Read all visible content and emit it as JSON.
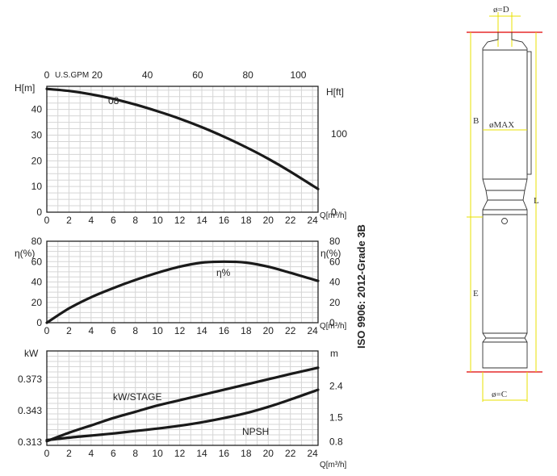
{
  "chart_data": [
    {
      "type": "line",
      "name": "head",
      "x_label": "Q[m³/h]",
      "x_ticks": [
        "0",
        "2",
        "4",
        "6",
        "8",
        "10",
        "12",
        "14",
        "16",
        "18",
        "20",
        "22",
        "24"
      ],
      "xlim": [
        0,
        24.5
      ],
      "y_label": "H[m]",
      "y_ticks": [
        "0",
        "10",
        "20",
        "30",
        "40"
      ],
      "ylim": [
        0,
        49
      ],
      "top_axis_label": "U.S.GPM",
      "top_ticks": [
        "0",
        "20",
        "40",
        "60",
        "80",
        "100"
      ],
      "right_label": "H[ft]",
      "right_ticks": [
        "0",
        "100"
      ],
      "grid": true,
      "series": [
        {
          "name": "08",
          "x": [
            0,
            2,
            4,
            6,
            8,
            10,
            12,
            14,
            16,
            18,
            20,
            22,
            24.5
          ],
          "y": [
            48,
            47.2,
            45.9,
            44.1,
            41.9,
            39.3,
            36.4,
            33.1,
            29.4,
            25.3,
            20.8,
            15.8,
            9
          ]
        }
      ]
    },
    {
      "type": "line",
      "name": "efficiency",
      "x_label": "Q[m³/h]",
      "x_ticks": [
        "0",
        "2",
        "4",
        "6",
        "8",
        "10",
        "12",
        "14",
        "16",
        "18",
        "20",
        "22",
        "24"
      ],
      "xlim": [
        0,
        24.5
      ],
      "y_label": "η(%)",
      "y_ticks": [
        "0",
        "20",
        "40",
        "60",
        "80"
      ],
      "ylim": [
        0,
        80
      ],
      "right_label": "η(%)",
      "right_ticks": [
        "0",
        "20",
        "40",
        "60",
        "80"
      ],
      "grid": true,
      "series": [
        {
          "name": "η%",
          "x": [
            0,
            2,
            4,
            6,
            8,
            10,
            12,
            14,
            16,
            18,
            20,
            22,
            24.5
          ],
          "y": [
            0,
            14,
            25,
            34,
            42,
            49,
            55,
            59,
            60,
            59,
            55,
            49,
            41
          ]
        }
      ]
    },
    {
      "type": "line",
      "name": "power-npsh",
      "x_label": "Q[m³/h]",
      "x_ticks": [
        "0",
        "2",
        "4",
        "6",
        "8",
        "10",
        "12",
        "14",
        "16",
        "18",
        "20",
        "22",
        "24"
      ],
      "xlim": [
        0,
        24.5
      ],
      "y_label": "kW",
      "y_ticks": [
        "0.313",
        "0.343",
        "0.373"
      ],
      "ylim": [
        0.31,
        0.4
      ],
      "right_label": "m",
      "right_ticks": [
        "0.8",
        "1.5",
        "2.4"
      ],
      "right_lim": [
        0.7,
        3.4
      ],
      "grid": true,
      "series": [
        {
          "name": "kW/STAGE",
          "axis": "left",
          "x": [
            0,
            2,
            4,
            6,
            8,
            10,
            12,
            14,
            16,
            18,
            20,
            22,
            24.5
          ],
          "y": [
            0.314,
            0.322,
            0.329,
            0.336,
            0.342,
            0.348,
            0.353,
            0.358,
            0.363,
            0.368,
            0.373,
            0.378,
            0.384
          ]
        },
        {
          "name": "NPSH",
          "axis": "right",
          "x": [
            0,
            2,
            4,
            6,
            8,
            10,
            12,
            14,
            16,
            18,
            20,
            22,
            24.5
          ],
          "y": [
            0.85,
            0.92,
            0.98,
            1.04,
            1.11,
            1.18,
            1.26,
            1.36,
            1.48,
            1.62,
            1.8,
            2.01,
            2.29
          ]
        }
      ]
    }
  ],
  "side_label": "ISO 9906: 2012-Grade 3B",
  "drawing": {
    "dim_d": "ø=D",
    "dim_b": "B",
    "dim_max": "øMAX",
    "dim_l": "L",
    "dim_e": "E",
    "dim_c": "ø=C"
  }
}
